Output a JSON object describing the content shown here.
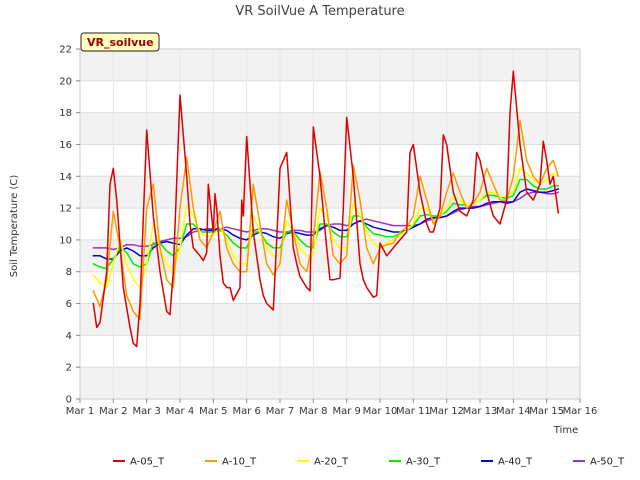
{
  "chart_data": {
    "type": "line",
    "title": "VR SoilVue A Temperature",
    "xlabel": "Time",
    "ylabel": "Soil Temperature (C)",
    "badge": "VR_soilvue",
    "xlim": [
      1,
      16
    ],
    "ylim": [
      0,
      22
    ],
    "xticks": [
      1,
      2,
      3,
      4,
      5,
      6,
      7,
      8,
      9,
      10,
      11,
      12,
      13,
      14,
      15,
      16
    ],
    "xtick_labels": [
      "Mar 1",
      "Mar 2",
      "Mar 3",
      "Mar 4",
      "Mar 5",
      "Mar 6",
      "Mar 7",
      "Mar 8",
      "Mar 9",
      "Mar 10",
      "Mar 11",
      "Mar 12",
      "Mar 13",
      "Mar 14",
      "Mar 15",
      "Mar 16"
    ],
    "yticks": [
      0,
      2,
      4,
      6,
      8,
      10,
      12,
      14,
      16,
      18,
      20,
      22
    ],
    "ytick_labels": [
      "0",
      "2",
      "4",
      "6",
      "8",
      "10",
      "12",
      "14",
      "16",
      "18",
      "20",
      "22"
    ],
    "grid": true,
    "banded_background": true,
    "legend_position": "bottom",
    "series": [
      {
        "name": "A-05_T",
        "color": "#dd0000",
        "x": [
          1.4,
          1.5,
          1.6,
          1.8,
          1.9,
          2.0,
          2.1,
          2.3,
          2.5,
          2.6,
          2.7,
          2.8,
          3.0,
          3.2,
          3.4,
          3.6,
          3.7,
          3.8,
          4.0,
          4.2,
          4.3,
          4.4,
          4.6,
          4.7,
          4.8,
          4.85,
          5.0,
          5.05,
          5.1,
          5.2,
          5.3,
          5.4,
          5.5,
          5.6,
          5.8,
          5.85,
          5.9,
          6.0,
          6.2,
          6.4,
          6.5,
          6.6,
          6.8,
          6.9,
          7.0,
          7.2,
          7.4,
          7.5,
          7.6,
          7.8,
          7.9,
          8.0,
          8.2,
          8.4,
          8.5,
          8.6,
          8.8,
          8.9,
          9.0,
          9.2,
          9.4,
          9.5,
          9.6,
          9.8,
          9.9,
          10.0,
          10.2,
          10.4,
          10.6,
          10.8,
          10.9,
          11.0,
          11.2,
          11.4,
          11.5,
          11.6,
          11.8,
          11.9,
          12.0,
          12.2,
          12.4,
          12.6,
          12.8,
          12.9,
          13.0,
          13.2,
          13.4,
          13.6,
          13.8,
          13.9,
          14.0,
          14.2,
          14.4,
          14.6,
          14.8,
          14.9,
          15.0,
          15.1,
          15.2,
          15.35
        ],
        "y": [
          6.0,
          4.5,
          4.8,
          8.0,
          13.5,
          14.5,
          12.5,
          7.0,
          4.5,
          3.5,
          3.3,
          6.0,
          16.9,
          11.5,
          8.0,
          5.5,
          5.3,
          8.0,
          19.1,
          14.0,
          11.0,
          9.5,
          9.0,
          8.7,
          9.2,
          13.5,
          10.5,
          12.9,
          12.0,
          9.0,
          7.3,
          7.0,
          7.0,
          6.2,
          7.0,
          12.5,
          11.5,
          16.5,
          10.5,
          7.5,
          6.5,
          6.0,
          5.6,
          10.0,
          14.5,
          15.5,
          9.5,
          8.5,
          7.7,
          7.0,
          6.8,
          17.1,
          14.0,
          9.5,
          7.5,
          7.5,
          7.6,
          12.0,
          17.7,
          14.0,
          8.5,
          7.5,
          7.0,
          6.4,
          6.5,
          9.8,
          9.0,
          9.5,
          10.0,
          10.5,
          15.5,
          16.0,
          13.0,
          11.0,
          10.5,
          10.5,
          12.0,
          16.6,
          16.0,
          13.0,
          11.8,
          11.5,
          12.5,
          15.5,
          15.0,
          13.0,
          11.5,
          11.0,
          12.5,
          18.0,
          20.6,
          16.0,
          13.0,
          12.5,
          13.5,
          16.2,
          15.0,
          13.5,
          14.0,
          11.7
        ]
      },
      {
        "name": "A-10_T",
        "color": "#ff9900",
        "x": [
          1.4,
          1.6,
          1.8,
          2.0,
          2.2,
          2.4,
          2.6,
          2.8,
          3.0,
          3.2,
          3.4,
          3.6,
          3.8,
          4.0,
          4.2,
          4.4,
          4.6,
          4.8,
          5.0,
          5.2,
          5.4,
          5.6,
          5.8,
          6.0,
          6.2,
          6.4,
          6.6,
          6.8,
          7.0,
          7.2,
          7.4,
          7.6,
          7.8,
          8.0,
          8.2,
          8.4,
          8.6,
          8.8,
          9.0,
          9.2,
          9.4,
          9.6,
          9.8,
          10.0,
          10.2,
          10.4,
          10.6,
          10.8,
          11.0,
          11.2,
          11.4,
          11.6,
          11.8,
          12.0,
          12.2,
          12.4,
          12.6,
          12.8,
          13.0,
          13.2,
          13.4,
          13.6,
          13.8,
          14.0,
          14.2,
          14.4,
          14.6,
          14.8,
          15.0,
          15.2,
          15.35
        ],
        "y": [
          6.8,
          5.8,
          7.5,
          11.8,
          9.5,
          6.5,
          5.5,
          5.0,
          12.0,
          13.5,
          9.5,
          7.5,
          7.0,
          12.0,
          15.2,
          12.0,
          10.0,
          9.5,
          10.5,
          11.8,
          9.5,
          8.5,
          8.0,
          8.0,
          13.5,
          11.0,
          8.5,
          7.8,
          8.5,
          12.5,
          10.5,
          8.5,
          8.0,
          10.0,
          14.3,
          12.0,
          9.0,
          8.5,
          9.0,
          14.7,
          12.5,
          9.5,
          8.5,
          9.5,
          9.7,
          9.8,
          10.5,
          10.8,
          11.5,
          14.0,
          12.5,
          11.0,
          11.5,
          13.0,
          14.2,
          13.0,
          12.0,
          12.3,
          13.0,
          14.5,
          13.5,
          12.5,
          12.5,
          14.0,
          17.5,
          15.0,
          14.0,
          13.5,
          14.5,
          15.0,
          14.0
        ]
      },
      {
        "name": "A-20_T",
        "color": "#ffff00",
        "x": [
          1.4,
          1.6,
          1.8,
          2.0,
          2.2,
          2.4,
          2.6,
          2.8,
          3.0,
          3.2,
          3.4,
          3.6,
          3.8,
          4.0,
          4.2,
          4.4,
          4.6,
          4.8,
          5.0,
          5.2,
          5.4,
          5.6,
          5.8,
          6.0,
          6.2,
          6.4,
          6.6,
          6.8,
          7.0,
          7.2,
          7.4,
          7.6,
          7.8,
          8.0,
          8.2,
          8.4,
          8.6,
          8.8,
          9.0,
          9.2,
          9.4,
          9.6,
          9.8,
          10.0,
          10.2,
          10.4,
          10.6,
          10.8,
          11.0,
          11.2,
          11.4,
          11.6,
          11.8,
          12.0,
          12.2,
          12.4,
          12.6,
          12.8,
          13.0,
          13.2,
          13.4,
          13.6,
          13.8,
          14.0,
          14.2,
          14.4,
          14.6,
          14.8,
          15.0,
          15.2,
          15.35
        ],
        "y": [
          7.8,
          7.3,
          7.0,
          8.5,
          10.0,
          8.5,
          7.5,
          7.0,
          8.5,
          11.0,
          9.5,
          8.5,
          8.0,
          9.5,
          12.2,
          11.5,
          10.5,
          10.2,
          10.3,
          10.8,
          10.0,
          9.0,
          8.5,
          8.5,
          11.5,
          10.5,
          9.5,
          9.0,
          9.0,
          11.2,
          10.5,
          9.5,
          9.0,
          9.0,
          12.0,
          11.5,
          10.0,
          9.5,
          9.5,
          12.3,
          11.5,
          10.5,
          9.8,
          9.5,
          9.8,
          10.0,
          10.3,
          10.6,
          11.0,
          12.0,
          12.0,
          11.2,
          11.5,
          12.0,
          12.8,
          12.5,
          12.2,
          12.3,
          12.5,
          13.0,
          13.0,
          12.7,
          12.8,
          13.0,
          14.5,
          14.2,
          13.8,
          13.5,
          13.8,
          14.2,
          14.0
        ]
      },
      {
        "name": "A-30_T",
        "color": "#00ee00",
        "x": [
          1.4,
          1.6,
          1.8,
          2.0,
          2.2,
          2.4,
          2.6,
          2.8,
          3.0,
          3.2,
          3.4,
          3.6,
          3.8,
          4.0,
          4.2,
          4.4,
          4.6,
          4.8,
          5.0,
          5.2,
          5.4,
          5.6,
          5.8,
          6.0,
          6.2,
          6.4,
          6.6,
          6.8,
          7.0,
          7.2,
          7.4,
          7.6,
          7.8,
          8.0,
          8.2,
          8.4,
          8.6,
          8.8,
          9.0,
          9.2,
          9.4,
          9.6,
          9.8,
          10.0,
          10.2,
          10.4,
          10.6,
          10.8,
          11.0,
          11.2,
          11.4,
          11.6,
          11.8,
          12.0,
          12.2,
          12.4,
          12.6,
          12.8,
          13.0,
          13.2,
          13.4,
          13.6,
          13.8,
          14.0,
          14.2,
          14.4,
          14.6,
          14.8,
          15.0,
          15.2,
          15.35
        ],
        "y": [
          8.5,
          8.3,
          8.2,
          8.8,
          9.5,
          9.2,
          8.5,
          8.3,
          8.5,
          9.8,
          9.8,
          9.3,
          9.0,
          9.5,
          11.0,
          11.0,
          10.5,
          10.5,
          10.5,
          10.6,
          10.3,
          9.8,
          9.5,
          9.5,
          10.5,
          10.5,
          9.8,
          9.5,
          9.5,
          10.5,
          10.5,
          10.0,
          9.6,
          9.5,
          11.0,
          11.0,
          10.5,
          10.2,
          10.2,
          11.5,
          11.5,
          10.8,
          10.4,
          10.3,
          10.2,
          10.2,
          10.4,
          10.6,
          10.9,
          11.5,
          11.6,
          11.5,
          11.5,
          11.8,
          12.3,
          12.2,
          12.2,
          12.3,
          12.5,
          12.8,
          12.8,
          12.7,
          12.6,
          12.8,
          13.8,
          13.8,
          13.4,
          13.2,
          13.2,
          13.4,
          13.4
        ]
      },
      {
        "name": "A-40_T",
        "color": "#0000cc",
        "x": [
          1.4,
          1.6,
          1.8,
          2.0,
          2.2,
          2.4,
          2.6,
          2.8,
          3.0,
          3.2,
          3.4,
          3.6,
          3.8,
          4.0,
          4.2,
          4.4,
          4.6,
          4.8,
          5.0,
          5.2,
          5.4,
          5.6,
          5.8,
          6.0,
          6.2,
          6.4,
          6.6,
          6.8,
          7.0,
          7.2,
          7.4,
          7.6,
          7.8,
          8.0,
          8.2,
          8.4,
          8.6,
          8.8,
          9.0,
          9.2,
          9.4,
          9.6,
          9.8,
          10.0,
          10.2,
          10.4,
          10.6,
          10.8,
          11.0,
          11.2,
          11.4,
          11.6,
          11.8,
          12.0,
          12.2,
          12.4,
          12.6,
          12.8,
          13.0,
          13.2,
          13.4,
          13.6,
          13.8,
          14.0,
          14.2,
          14.4,
          14.6,
          14.8,
          15.0,
          15.2,
          15.35
        ],
        "y": [
          9.0,
          9.0,
          8.8,
          8.8,
          9.3,
          9.5,
          9.3,
          9.0,
          9.0,
          9.5,
          9.8,
          9.9,
          9.8,
          9.7,
          10.3,
          10.7,
          10.7,
          10.6,
          10.6,
          10.7,
          10.6,
          10.3,
          10.1,
          10.0,
          10.3,
          10.5,
          10.4,
          10.2,
          10.1,
          10.4,
          10.5,
          10.4,
          10.3,
          10.3,
          10.7,
          10.9,
          10.8,
          10.6,
          10.6,
          11.0,
          11.2,
          11.0,
          10.8,
          10.7,
          10.6,
          10.5,
          10.5,
          10.6,
          10.8,
          11.0,
          11.3,
          11.4,
          11.4,
          11.5,
          11.8,
          12.0,
          12.0,
          12.0,
          12.1,
          12.3,
          12.4,
          12.4,
          12.3,
          12.4,
          13.0,
          13.2,
          13.1,
          13.0,
          13.0,
          13.1,
          13.2
        ]
      },
      {
        "name": "A-50_T",
        "color": "#9933cc",
        "x": [
          1.4,
          1.6,
          1.8,
          2.0,
          2.2,
          2.4,
          2.6,
          2.8,
          3.0,
          3.2,
          3.4,
          3.6,
          3.8,
          4.0,
          4.2,
          4.4,
          4.6,
          4.8,
          5.0,
          5.2,
          5.4,
          5.6,
          5.8,
          6.0,
          6.2,
          6.4,
          6.6,
          6.8,
          7.0,
          7.2,
          7.4,
          7.6,
          7.8,
          8.0,
          8.2,
          8.4,
          8.6,
          8.8,
          9.0,
          9.2,
          9.4,
          9.6,
          9.8,
          10.0,
          10.2,
          10.4,
          10.6,
          10.8,
          11.0,
          11.2,
          11.4,
          11.6,
          11.8,
          12.0,
          12.2,
          12.4,
          12.6,
          12.8,
          13.0,
          13.2,
          13.4,
          13.6,
          13.8,
          14.0,
          14.2,
          14.4,
          14.6,
          14.8,
          15.0,
          15.2,
          15.35
        ],
        "y": [
          9.5,
          9.5,
          9.5,
          9.4,
          9.5,
          9.7,
          9.7,
          9.6,
          9.6,
          9.7,
          9.9,
          10.0,
          10.1,
          10.1,
          10.2,
          10.5,
          10.6,
          10.7,
          10.7,
          10.7,
          10.8,
          10.7,
          10.6,
          10.5,
          10.6,
          10.7,
          10.7,
          10.6,
          10.5,
          10.5,
          10.6,
          10.6,
          10.5,
          10.5,
          10.6,
          10.9,
          11.0,
          11.0,
          10.9,
          11.0,
          11.2,
          11.3,
          11.2,
          11.1,
          11.0,
          10.9,
          10.9,
          10.9,
          10.9,
          11.0,
          11.2,
          11.3,
          11.4,
          11.5,
          11.7,
          11.9,
          12.0,
          12.1,
          12.1,
          12.2,
          12.3,
          12.4,
          12.4,
          12.4,
          12.6,
          12.9,
          13.0,
          13.0,
          12.9,
          12.9,
          13.0
        ]
      }
    ]
  }
}
